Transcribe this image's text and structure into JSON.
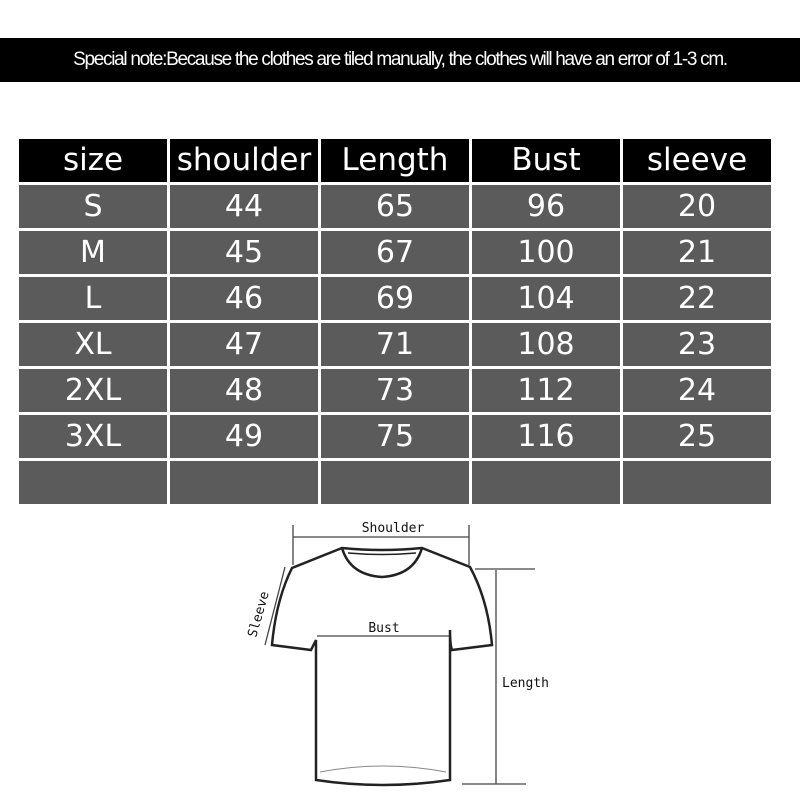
{
  "note": "Special note:Because the clothes are tiled manually, the clothes will have an error of 1-3 cm.",
  "table": {
    "headers": [
      "size",
      "shoulder",
      "Length",
      "Bust",
      "sleeve"
    ],
    "rows": [
      [
        "S",
        "44",
        "65",
        "96",
        "20"
      ],
      [
        "M",
        "45",
        "67",
        "100",
        "21"
      ],
      [
        "L",
        "46",
        "69",
        "104",
        "22"
      ],
      [
        "XL",
        "47",
        "71",
        "108",
        "23"
      ],
      [
        "2XL",
        "48",
        "73",
        "112",
        "24"
      ],
      [
        "3XL",
        "49",
        "75",
        "116",
        "25"
      ],
      [
        "",
        "",
        "",
        "",
        ""
      ]
    ]
  },
  "diagram": {
    "shoulder": "Shoulder",
    "bust": "Bust",
    "length": "Length",
    "sleeve": "Sleeve"
  }
}
